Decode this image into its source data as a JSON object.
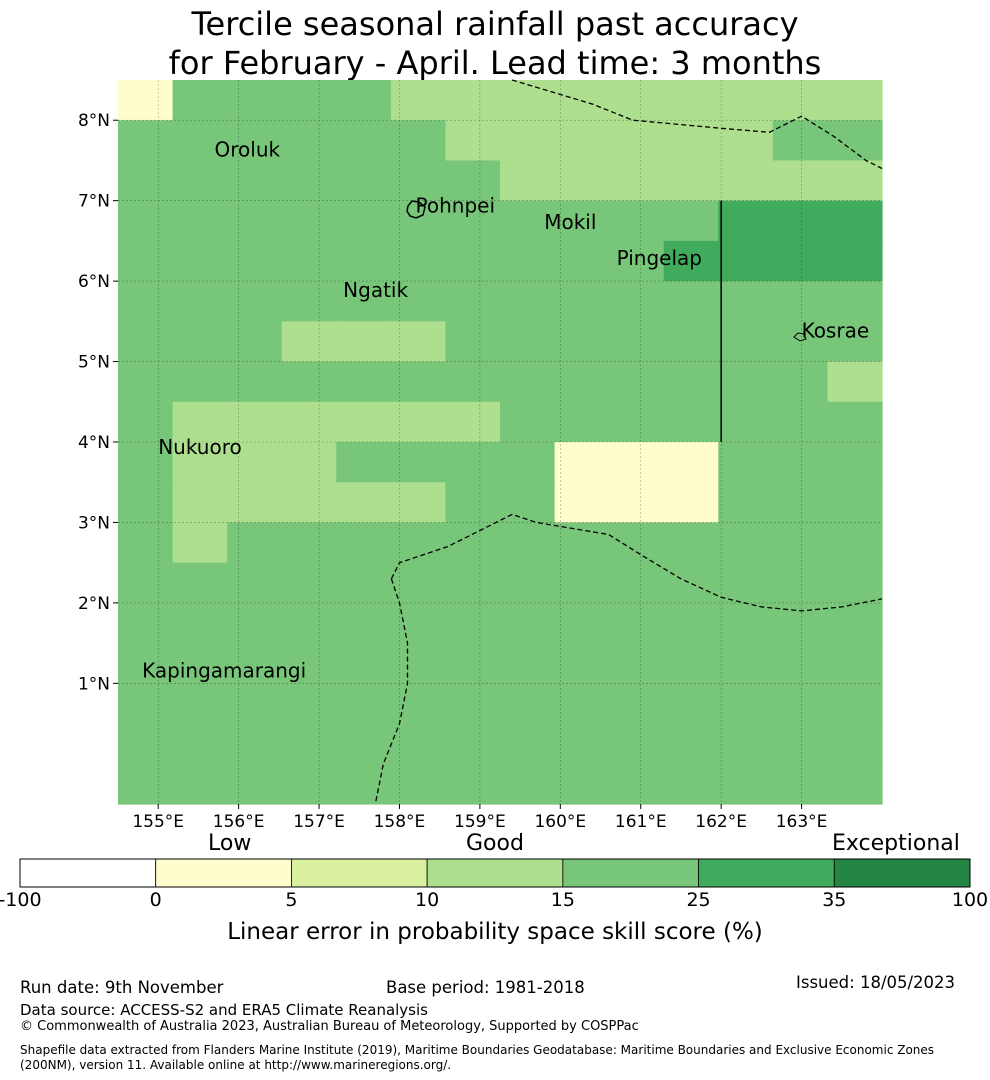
{
  "title": {
    "line1": "Tercile seasonal rainfall past accuracy",
    "line2": "for February - April. Lead time: 3 months"
  },
  "map": {
    "lon_range": [
      154.5,
      164.0
    ],
    "lat_range": [
      -0.5,
      8.5
    ],
    "x_ticks": [
      155,
      156,
      157,
      158,
      159,
      160,
      161,
      162,
      163
    ],
    "x_tick_labels": [
      "155°E",
      "156°E",
      "157°E",
      "158°E",
      "159°E",
      "160°E",
      "161°E",
      "162°E",
      "163°E"
    ],
    "y_ticks": [
      1,
      2,
      3,
      4,
      5,
      6,
      7,
      8
    ],
    "y_tick_labels": [
      "1°N",
      "2°N",
      "3°N",
      "4°N",
      "5°N",
      "6°N",
      "7°N",
      "8°N"
    ],
    "grid": true,
    "skill_category_grid": [
      [
        1,
        4,
        4,
        4,
        4,
        3,
        3,
        3,
        3,
        3,
        3,
        3,
        3,
        3
      ],
      [
        4,
        4,
        4,
        4,
        4,
        4,
        3,
        3,
        3,
        3,
        3,
        3,
        4,
        4
      ],
      [
        4,
        4,
        4,
        4,
        4,
        4,
        4,
        3,
        3,
        3,
        3,
        3,
        3,
        3
      ],
      [
        4,
        4,
        4,
        4,
        4,
        4,
        4,
        4,
        4,
        4,
        4,
        5,
        5,
        5
      ],
      [
        4,
        4,
        4,
        4,
        4,
        4,
        4,
        4,
        4,
        4,
        5,
        5,
        5,
        5
      ],
      [
        4,
        4,
        4,
        4,
        4,
        4,
        4,
        4,
        4,
        4,
        4,
        4,
        4,
        4
      ],
      [
        4,
        4,
        4,
        3,
        3,
        3,
        4,
        4,
        4,
        4,
        4,
        4,
        4,
        4
      ],
      [
        4,
        4,
        4,
        4,
        4,
        4,
        4,
        4,
        4,
        4,
        4,
        4,
        4,
        3
      ],
      [
        4,
        3,
        3,
        3,
        3,
        3,
        3,
        4,
        4,
        4,
        4,
        4,
        4,
        4
      ],
      [
        4,
        3,
        3,
        3,
        4,
        4,
        4,
        4,
        1,
        1,
        1,
        4,
        4,
        4
      ],
      [
        4,
        3,
        3,
        3,
        3,
        3,
        4,
        4,
        1,
        1,
        1,
        4,
        4,
        4
      ],
      [
        4,
        3,
        4,
        4,
        4,
        4,
        4,
        4,
        4,
        4,
        4,
        4,
        4,
        4
      ],
      [
        4,
        4,
        4,
        4,
        4,
        4,
        4,
        4,
        4,
        4,
        4,
        4,
        4,
        4
      ],
      [
        4,
        4,
        4,
        4,
        4,
        4,
        4,
        4,
        4,
        4,
        4,
        4,
        4,
        4
      ],
      [
        4,
        4,
        4,
        4,
        4,
        4,
        4,
        4,
        4,
        4,
        4,
        4,
        4,
        4
      ],
      [
        4,
        4,
        4,
        4,
        4,
        4,
        4,
        4,
        4,
        4,
        4,
        4,
        4,
        4
      ],
      [
        4,
        4,
        4,
        4,
        4,
        4,
        4,
        4,
        4,
        4,
        4,
        4,
        4,
        4
      ],
      [
        4,
        4,
        4,
        4,
        4,
        4,
        4,
        4,
        4,
        4,
        4,
        4,
        4,
        4
      ]
    ],
    "islands": [
      {
        "name": "Oroluk",
        "lon": 155.7,
        "lat": 7.55
      },
      {
        "name": "Pohnpei",
        "lon": 158.2,
        "lat": 6.85
      },
      {
        "name": "Mokil",
        "lon": 159.8,
        "lat": 6.65
      },
      {
        "name": "Pingelap",
        "lon": 160.7,
        "lat": 6.2
      },
      {
        "name": "Ngatik",
        "lon": 157.3,
        "lat": 5.8
      },
      {
        "name": "Kosrae",
        "lon": 163.0,
        "lat": 5.3
      },
      {
        "name": "Nukuoro",
        "lon": 155.0,
        "lat": 3.85
      },
      {
        "name": "Kapingamarangi",
        "lon": 154.8,
        "lat": 1.07
      }
    ],
    "eez_boundaries": [
      [
        [
          159.4,
          8.5
        ],
        [
          160.4,
          8.2
        ],
        [
          160.9,
          8.0
        ],
        [
          162.0,
          7.9
        ],
        [
          162.6,
          7.85
        ],
        [
          163.0,
          8.05
        ],
        [
          163.4,
          7.8
        ],
        [
          163.8,
          7.5
        ],
        [
          164.0,
          7.4
        ]
      ],
      [
        [
          157.9,
          2.3
        ],
        [
          158.0,
          2.5
        ],
        [
          158.6,
          2.7
        ],
        [
          159.0,
          2.9
        ],
        [
          159.4,
          3.1
        ],
        [
          159.7,
          3.0
        ],
        [
          160.6,
          2.85
        ],
        [
          161.0,
          2.6
        ],
        [
          161.5,
          2.3
        ],
        [
          162.0,
          2.07
        ],
        [
          162.5,
          1.95
        ],
        [
          163.0,
          1.9
        ],
        [
          163.5,
          1.95
        ],
        [
          164.0,
          2.05
        ]
      ],
      [
        [
          157.9,
          2.3
        ],
        [
          158.0,
          2.0
        ],
        [
          158.1,
          1.5
        ],
        [
          158.1,
          1.0
        ],
        [
          158.0,
          0.5
        ],
        [
          157.8,
          0.0
        ],
        [
          157.7,
          -0.5
        ]
      ]
    ],
    "solid_line": [
      [
        162.0,
        7.0
      ],
      [
        162.0,
        4.0
      ]
    ]
  },
  "colorbar": {
    "categories": [
      "Low",
      "Good",
      "Exceptional"
    ],
    "boundaries": [
      "-100",
      "0",
      "5",
      "10",
      "15",
      "25",
      "35",
      "100"
    ],
    "colors": [
      "#ffffff",
      "#fffdcd",
      "#d9f09f",
      "#addf8e",
      "#78c679",
      "#41ab5d",
      "#238443"
    ],
    "title": "Linear error in probability space skill score (%)"
  },
  "footer": {
    "run_date": "Run date: 9th November",
    "base_period": "Base period: 1981-2018",
    "issued": "Issued: 18/05/2023",
    "data_source": "Data source: ACCESS-S2 and ERA5 Climate Reanalysis",
    "copyright": "© Commonwealth of Australia 2023, Australian Bureau of Meteorology, Supported by COSPPac",
    "shapefile": "Shapefile data extracted from Flanders Marine Institute (2019), Maritime Boundaries Geodatabase: Maritime Boundaries and Exclusive Economic Zones (200NM), version 11. Available online at http://www.marineregions.org/."
  }
}
